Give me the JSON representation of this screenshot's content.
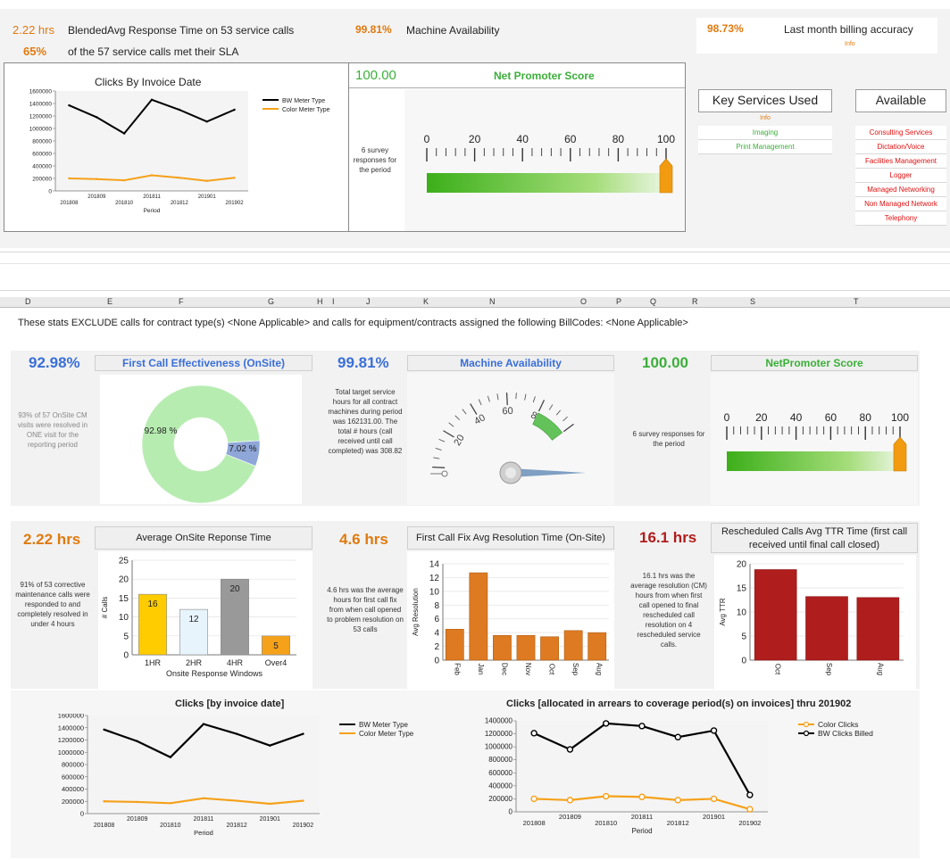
{
  "top": {
    "resp_value": "2.22 hrs",
    "resp_label": "BlendedAvg Response Time on 53 service calls",
    "sla_value": "65%",
    "sla_label": "of the 57 service calls met their SLA",
    "avail_value": "99.81%",
    "avail_label": "Machine Availability",
    "billing_value": "98.73%",
    "billing_label": "Last month billing accuracy",
    "billing_info": "Info",
    "clicks_title": "Clicks By Invoice Date",
    "nps_value": "100.00",
    "nps_title": "Net Promoter Score",
    "nps_note": "6 survey responses for the period",
    "key_services_title": "Key Services Used",
    "key_services_info": "Info",
    "key_services": [
      "Imaging",
      "Print Management"
    ],
    "available_title": "Available",
    "available": [
      "Consulting Services",
      "Dictation/Voice",
      "Facilities Management",
      "Logger",
      "Managed Networking",
      "Non Managed Network",
      "Telephony"
    ]
  },
  "columns": [
    "D",
    "E",
    "F",
    "G",
    "H",
    "I",
    "J",
    "K",
    "N",
    "O",
    "P",
    "Q",
    "R",
    "S",
    "T"
  ],
  "notice": "These stats EXCLUDE calls for contract type(s) <None Applicable> and calls for equipment/contracts assigned the following BillCodes: <None Applicable>",
  "fce": {
    "value": "92.98%",
    "title": "First Call Effectiveness (OnSite)",
    "note": "93% of 57 OnSite CM visits were resolved in ONE visit for the reporting period"
  },
  "ma": {
    "value": "99.81%",
    "title": "Machine Availability",
    "note": "Total target service hours for all contract machines during period was 162131.00. The total # hours (call received until call completed) was 308.82"
  },
  "nps2": {
    "value": "100.00",
    "title": "NetPromoter Score",
    "note": "6 survey responses for the period"
  },
  "aort": {
    "value": "2.22 hrs",
    "title": "Average OnSite Reponse Time",
    "note": "91% of 53 corrective maintenance calls were responded to and completely resolved in under 4 hours"
  },
  "fcf": {
    "value": "4.6 hrs",
    "title": "First Call Fix Avg Resolution Time (On-Site)",
    "note": "4.6 hrs was the average hours for first call fix from when call opened to problem resolution on 53 calls"
  },
  "resched": {
    "value": "16.1 hrs",
    "title": "Rescheduled Calls Avg TTR Time (first call received until final call closed)",
    "note": "16.1 hrs was the average resolution (CM) hours from when first call opened to final rescheduled call resolution on 4 rescheduled service calls."
  },
  "clicks1": {
    "title": "Clicks [by invoice date]"
  },
  "clicks2": {
    "title": "Clicks [allocated in arrears to coverage period(s) on invoices] thru 201902"
  },
  "colors": {
    "accent_orange": "#e07a10",
    "accent_blue": "#3a6fd8",
    "accent_red": "#b01d1d",
    "gauge_green": "#3caf3a",
    "gauge_orange": "#f29b11"
  },
  "chart_data": [
    {
      "type": "line",
      "title": "Clicks By Invoice Date",
      "xlabel": "Period",
      "categories": [
        "201808",
        "201809",
        "201810",
        "201811",
        "201812",
        "201901",
        "201902"
      ],
      "series": [
        {
          "name": "BW Meter Type",
          "values": [
            1370000,
            1180000,
            920000,
            1460000,
            1300000,
            1110000,
            1300000
          ]
        },
        {
          "name": "Color Meter Type",
          "values": [
            200000,
            190000,
            170000,
            250000,
            210000,
            160000,
            210000
          ]
        }
      ],
      "ylim": [
        0,
        1600000
      ],
      "yticks": [
        0,
        200000,
        400000,
        600000,
        800000,
        1000000,
        1200000,
        1400000,
        1600000
      ]
    },
    {
      "type": "pie",
      "title": "First Call Effectiveness (OnSite)",
      "slices": [
        {
          "label": "92.98 %",
          "value": 92.98
        },
        {
          "label": "7.02 %",
          "value": 7.02
        }
      ]
    },
    {
      "type": "bar",
      "title": "Average OnSite Reponse Time",
      "xlabel": "Onsite Response Windows",
      "ylabel": "# Calls",
      "categories": [
        "1HR",
        "2HR",
        "4HR",
        "Over4"
      ],
      "values": [
        16,
        12,
        20,
        5
      ],
      "ylim": [
        0,
        25
      ],
      "yticks": [
        0,
        5,
        10,
        15,
        20,
        25
      ]
    },
    {
      "type": "bar",
      "title": "First Call Fix Avg Resolution Time (On-Site)",
      "ylabel": "Avg Resolution",
      "categories": [
        "Feb",
        "Jan",
        "Dec",
        "Nov",
        "Oct",
        "Sep",
        "Aug"
      ],
      "values": [
        4.5,
        12.7,
        3.6,
        3.6,
        3.4,
        4.3,
        4.0
      ],
      "ylim": [
        0,
        14
      ],
      "yticks": [
        0,
        2,
        4,
        6,
        8,
        10,
        12,
        14
      ]
    },
    {
      "type": "bar",
      "title": "Rescheduled Calls Avg TTR Time (first call received until final call closed)",
      "ylabel": "Avg TTR",
      "categories": [
        "Oct",
        "Sep",
        "Aug"
      ],
      "values": [
        18.8,
        13.2,
        13.0
      ],
      "ylim": [
        0,
        20
      ],
      "yticks": [
        0,
        5,
        10,
        15,
        20
      ]
    },
    {
      "type": "line",
      "title": "Clicks [by invoice date]",
      "xlabel": "Period",
      "categories": [
        "201808",
        "201809",
        "201810",
        "201811",
        "201812",
        "201901",
        "201902"
      ],
      "series": [
        {
          "name": "BW Meter Type",
          "values": [
            1370000,
            1180000,
            920000,
            1460000,
            1300000,
            1110000,
            1300000
          ]
        },
        {
          "name": "Color Meter Type",
          "values": [
            200000,
            190000,
            170000,
            250000,
            210000,
            160000,
            210000
          ]
        }
      ],
      "ylim": [
        0,
        1600000
      ],
      "yticks": [
        0,
        200000,
        400000,
        600000,
        800000,
        1000000,
        1200000,
        1400000,
        1600000
      ]
    },
    {
      "type": "line",
      "title": "Clicks [allocated in arrears to coverage period(s) on invoices] thru 201902",
      "xlabel": "Period",
      "categories": [
        "201808",
        "201809",
        "201810",
        "201811",
        "201812",
        "201901",
        "201902"
      ],
      "series": [
        {
          "name": "Color Clicks",
          "values": [
            200000,
            180000,
            240000,
            230000,
            180000,
            200000,
            40000
          ]
        },
        {
          "name": "BW Clicks Billed",
          "values": [
            1210000,
            960000,
            1360000,
            1320000,
            1150000,
            1250000,
            260000
          ]
        }
      ],
      "ylim": [
        0,
        1400000
      ],
      "yticks": [
        0,
        200000,
        400000,
        600000,
        800000,
        1000000,
        1200000,
        1400000
      ]
    },
    {
      "type": "gauge",
      "title": "Net Promoter Score",
      "value": 100,
      "min": 0,
      "max": 100,
      "ticks": [
        0,
        20,
        40,
        60,
        80,
        100
      ]
    },
    {
      "type": "gauge",
      "title": "Machine Availability",
      "value": 99.81,
      "ticks": [
        20,
        40,
        60,
        80
      ]
    }
  ]
}
